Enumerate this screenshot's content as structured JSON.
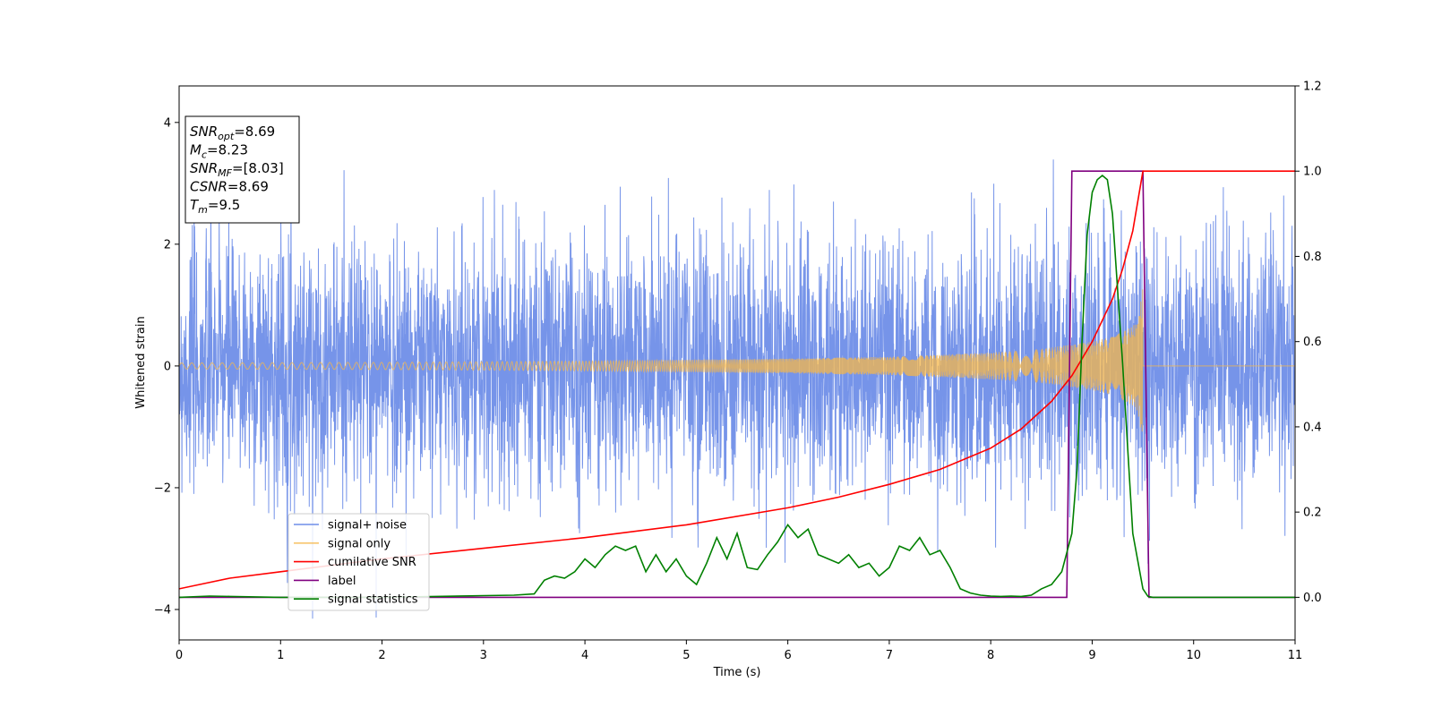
{
  "chart_data": {
    "type": "line",
    "xlabel": "Time (s)",
    "ylabel": "Whitened strain",
    "xlim": [
      0,
      11
    ],
    "ylim_left": [
      -4.5,
      4.6
    ],
    "ylim_right": [
      -0.1,
      1.2
    ],
    "xticks": [
      "0",
      "1",
      "2",
      "3",
      "4",
      "5",
      "6",
      "7",
      "8",
      "9",
      "10",
      "11"
    ],
    "yticks_left": [
      "−4",
      "−2",
      "0",
      "2",
      "4"
    ],
    "yticks_right": [
      "0.0",
      "0.2",
      "0.4",
      "0.6",
      "0.8",
      "1.0",
      "1.2"
    ],
    "legend_position": "lower-left",
    "colors": {
      "signal_noise": "#6f8ee8",
      "signal_only": "#f5b74a",
      "cumulative_snr": "#ff0000",
      "label": "#800080",
      "signal_statistics": "#008000"
    },
    "info_box": [
      {
        "main": "SNR",
        "sub": "opt",
        "rest": "=8.69"
      },
      {
        "main": "M",
        "sub": "c",
        "rest": "=8.23"
      },
      {
        "main": "SNR",
        "sub": "MF",
        "rest": "=[8.03]"
      },
      {
        "main": "CSNR",
        "sub": "",
        "rest": "=8.69"
      },
      {
        "main": "T",
        "sub": "m",
        "rest": "=9.5"
      }
    ],
    "series": [
      {
        "name": "signal+ noise",
        "axis": "left",
        "description": "whitened strain noise band, amplitude about ±2.5 with spikes to ±4.1 over 0–11 s"
      },
      {
        "name": "signal only",
        "axis": "left",
        "description": "chirp signal with growing amplitude, ending at 9.5 s",
        "envelope": {
          "x": [
            0,
            2,
            4,
            6,
            7,
            8,
            8.5,
            9,
            9.2,
            9.4,
            9.45,
            9.5
          ],
          "amp": [
            0.05,
            0.06,
            0.08,
            0.12,
            0.15,
            0.22,
            0.28,
            0.4,
            0.48,
            0.65,
            0.75,
            1.3
          ]
        }
      },
      {
        "name": "cumilative SNR",
        "axis": "right",
        "x": [
          0,
          0.5,
          1,
          2,
          3,
          4,
          5,
          6,
          6.5,
          7,
          7.5,
          8,
          8.3,
          8.6,
          8.8,
          9.0,
          9.2,
          9.3,
          9.4,
          9.5,
          11
        ],
        "y": [
          0.02,
          0.045,
          0.06,
          0.09,
          0.115,
          0.14,
          0.17,
          0.21,
          0.235,
          0.265,
          0.3,
          0.35,
          0.395,
          0.46,
          0.52,
          0.6,
          0.7,
          0.77,
          0.86,
          1.0,
          1.0
        ]
      },
      {
        "name": "label",
        "axis": "right",
        "x": [
          0,
          8.75,
          8.8,
          9.5,
          9.56,
          11
        ],
        "y": [
          0.0,
          0.0,
          1.0,
          1.0,
          0.0,
          0.0
        ]
      },
      {
        "name": "signal statistics",
        "axis": "right",
        "x": [
          0,
          0.3,
          0.5,
          1,
          2,
          3,
          3.3,
          3.5,
          3.6,
          3.7,
          3.8,
          3.9,
          4.0,
          4.1,
          4.2,
          4.3,
          4.4,
          4.5,
          4.6,
          4.7,
          4.8,
          4.9,
          5.0,
          5.1,
          5.2,
          5.3,
          5.4,
          5.5,
          5.6,
          5.7,
          5.8,
          5.9,
          6.0,
          6.1,
          6.2,
          6.3,
          6.4,
          6.5,
          6.6,
          6.7,
          6.8,
          6.9,
          7.0,
          7.1,
          7.2,
          7.3,
          7.4,
          7.5,
          7.6,
          7.7,
          7.8,
          7.9,
          8.0,
          8.1,
          8.2,
          8.3,
          8.4,
          8.5,
          8.6,
          8.7,
          8.8,
          8.85,
          8.9,
          8.95,
          9.0,
          9.05,
          9.1,
          9.15,
          9.2,
          9.3,
          9.4,
          9.5,
          9.55,
          9.6,
          10,
          11
        ],
        "y": [
          0.0,
          0.003,
          0.002,
          0.0,
          0.0,
          0.004,
          0.005,
          0.008,
          0.04,
          0.05,
          0.045,
          0.06,
          0.09,
          0.07,
          0.1,
          0.12,
          0.11,
          0.12,
          0.06,
          0.1,
          0.06,
          0.09,
          0.05,
          0.03,
          0.08,
          0.14,
          0.09,
          0.15,
          0.07,
          0.065,
          0.1,
          0.13,
          0.17,
          0.14,
          0.16,
          0.1,
          0.09,
          0.08,
          0.1,
          0.07,
          0.08,
          0.05,
          0.07,
          0.12,
          0.11,
          0.14,
          0.1,
          0.11,
          0.07,
          0.02,
          0.01,
          0.005,
          0.003,
          0.002,
          0.003,
          0.002,
          0.005,
          0.02,
          0.03,
          0.06,
          0.15,
          0.3,
          0.6,
          0.85,
          0.95,
          0.98,
          0.99,
          0.98,
          0.9,
          0.55,
          0.15,
          0.02,
          0.002,
          0.0,
          0.0,
          0.0
        ]
      }
    ]
  }
}
